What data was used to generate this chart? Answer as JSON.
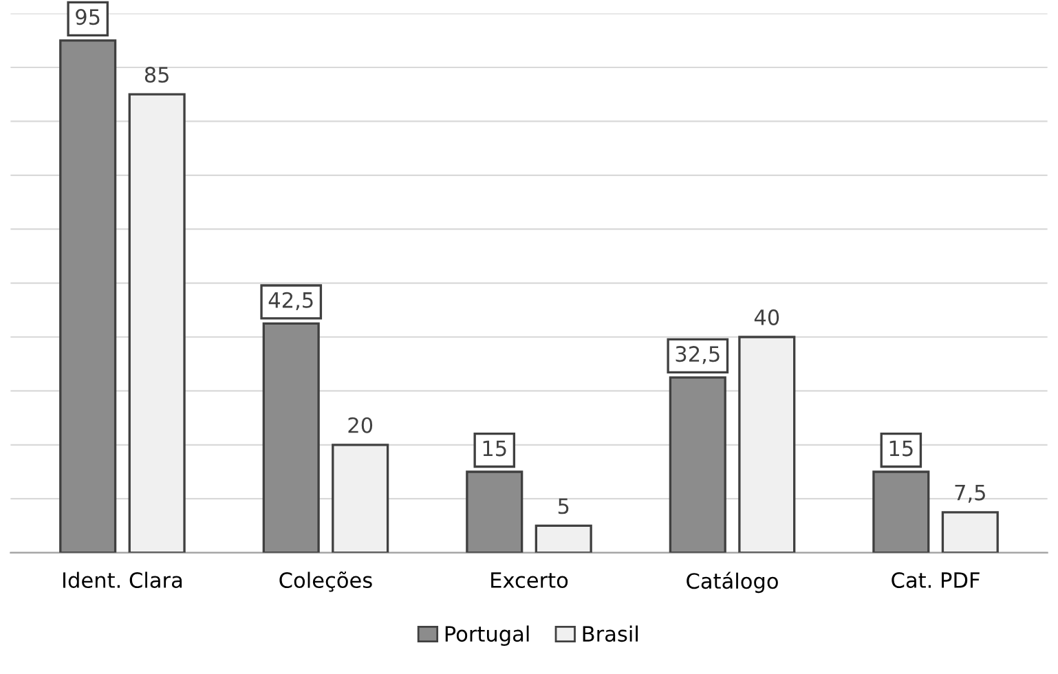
{
  "chart_data": {
    "type": "bar",
    "categories": [
      "Ident. Clara",
      "Coleções",
      "Excerto",
      "Catálogo",
      "Cat. PDF"
    ],
    "series": [
      {
        "name": "Portugal",
        "color": "#8c8c8c",
        "values": [
          95,
          42.5,
          15,
          32.5,
          15
        ],
        "value_labels": [
          "95",
          "42,5",
          "15",
          "32,5",
          "15"
        ]
      },
      {
        "name": "Brasil",
        "color": "#f0f0f0",
        "values": [
          85,
          20,
          5,
          40,
          7.5
        ],
        "value_labels": [
          "85",
          "20",
          "5",
          "40",
          "7,5"
        ]
      }
    ],
    "ylim": [
      0,
      100
    ],
    "yticks": [
      {
        "value": 0,
        "label": null
      },
      {
        "value": 10,
        "label": null
      },
      {
        "value": 20,
        "label": null
      },
      {
        "value": 30,
        "label": null
      },
      {
        "value": 40,
        "label": null
      },
      {
        "value": 50,
        "label": null
      },
      {
        "value": 60,
        "label": null
      },
      {
        "value": 70,
        "label": null
      },
      {
        "value": 80,
        "label": null
      },
      {
        "value": 90,
        "label": null
      },
      {
        "value": 100,
        "label": null
      }
    ],
    "grid": "y",
    "legend": "bottom"
  }
}
